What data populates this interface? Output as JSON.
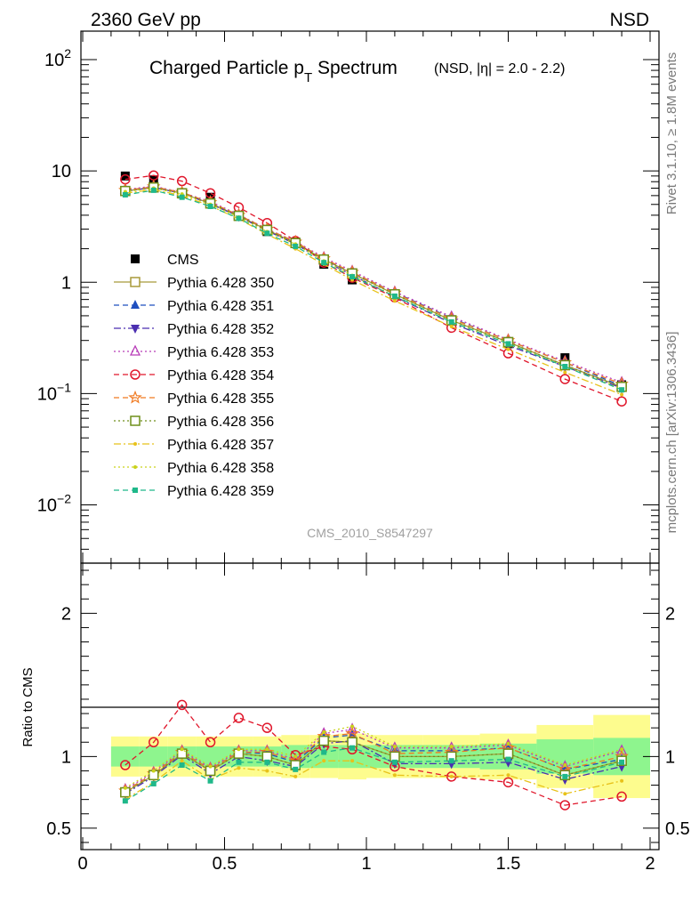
{
  "header": {
    "left": "2360 GeV pp",
    "right": "NSD"
  },
  "title": {
    "main": "Charged Particle p",
    "sub": "T",
    "main2": " Spectrum",
    "small": "(NSD, |η| = 2.0 - 2.2)"
  },
  "side_labels": {
    "rivet": "Rivet 3.1.10, ≥ 1.8M events",
    "mcplots": "mcplots.cern.ch [arXiv:1306.3436]"
  },
  "analysis_tag": "CMS_2010_S8547297",
  "ratio_ylabel": "Ratio to CMS",
  "colors": {
    "band_inner": "#8ef58e",
    "band_outer": "#fdfc8e"
  },
  "chart_data": [
    {
      "type": "scatter",
      "panel": "main",
      "yscale": "log",
      "ylim": [
        0.003,
        180
      ],
      "xlim": [
        0,
        2.05
      ],
      "y_ticks": [
        {
          "label": "10",
          "sup": "2"
        },
        {
          "label": "10",
          "sup": ""
        },
        {
          "label": "1",
          "sup": ""
        },
        {
          "label": "10",
          "sup": "−1"
        },
        {
          "label": "10",
          "sup": "−2"
        }
      ],
      "legend_position": "middle-left",
      "x": [
        0.15,
        0.25,
        0.35,
        0.45,
        0.55,
        0.65,
        0.75,
        0.85,
        0.95,
        1.1,
        1.3,
        1.5,
        1.7,
        1.9
      ],
      "series": [
        {
          "name": "CMS",
          "color": "#000000",
          "marker": "square-filled",
          "line": "none",
          "values": [
            9.0,
            8.3,
            6.2,
            5.8,
            3.9,
            2.85,
            2.3,
            1.45,
            1.05,
            0.78,
            0.455,
            0.28,
            0.21,
            0.12
          ]
        },
        {
          "name": "Pythia 6.428 350",
          "color": "#a89a3a",
          "marker": "square-open",
          "line": "solid",
          "values": [
            6.6,
            7.1,
            6.3,
            5.1,
            3.95,
            2.95,
            2.25,
            1.6,
            1.2,
            0.78,
            0.455,
            0.29,
            0.18,
            0.115
          ]
        },
        {
          "name": "Pythia 6.428 351",
          "color": "#1f4fbf",
          "marker": "triangle-up-filled",
          "line": "dashed",
          "values": [
            6.7,
            7.2,
            6.4,
            5.2,
            4.0,
            3.0,
            2.3,
            1.62,
            1.22,
            0.81,
            0.475,
            0.3,
            0.19,
            0.117
          ]
        },
        {
          "name": "Pythia 6.428 352",
          "color": "#4b2eb0",
          "marker": "triangle-down-filled",
          "line": "dashdot",
          "values": [
            6.6,
            7.1,
            6.3,
            5.05,
            3.9,
            2.9,
            2.2,
            1.56,
            1.16,
            0.74,
            0.43,
            0.27,
            0.175,
            0.112
          ]
        },
        {
          "name": "Pythia 6.428 353",
          "color": "#b83cb8",
          "marker": "triangle-up-open",
          "line": "dotted",
          "values": [
            6.8,
            7.3,
            6.4,
            5.3,
            4.05,
            3.0,
            2.33,
            1.67,
            1.26,
            0.82,
            0.49,
            0.305,
            0.195,
            0.126
          ]
        },
        {
          "name": "Pythia 6.428 354",
          "color": "#e0162b",
          "marker": "circle-open",
          "line": "dashed",
          "values": [
            8.4,
            9.1,
            8.1,
            6.3,
            4.7,
            3.4,
            2.35,
            1.5,
            1.1,
            0.73,
            0.39,
            0.23,
            0.135,
            0.085
          ]
        },
        {
          "name": "Pythia 6.428 355",
          "color": "#f07a22",
          "marker": "star-open",
          "line": "dashed",
          "values": [
            6.7,
            7.2,
            6.4,
            5.2,
            4.0,
            3.0,
            2.3,
            1.63,
            1.23,
            0.8,
            0.47,
            0.3,
            0.19,
            0.122
          ]
        },
        {
          "name": "Pythia 6.428 356",
          "color": "#6f8f1a",
          "marker": "square-open",
          "line": "dotted",
          "values": [
            6.6,
            7.1,
            6.3,
            5.1,
            3.95,
            2.95,
            2.25,
            1.6,
            1.2,
            0.78,
            0.455,
            0.29,
            0.18,
            0.115
          ]
        },
        {
          "name": "Pythia 6.428 357",
          "color": "#e8c21a",
          "marker": "dot",
          "line": "dashdot",
          "values": [
            6.3,
            6.8,
            6.0,
            4.85,
            3.7,
            2.7,
            2.0,
            1.45,
            1.05,
            0.68,
            0.4,
            0.25,
            0.155,
            0.098
          ]
        },
        {
          "name": "Pythia 6.428 358",
          "color": "#c9d21a",
          "marker": "dot",
          "line": "dotted",
          "values": [
            6.5,
            7.0,
            6.2,
            5.0,
            3.85,
            2.85,
            2.2,
            1.55,
            1.15,
            0.75,
            0.44,
            0.28,
            0.175,
            0.11
          ]
        },
        {
          "name": "Pythia 6.428 359",
          "color": "#1fb88a",
          "marker": "square-filled-small",
          "line": "dashed",
          "values": [
            6.1,
            6.7,
            5.8,
            4.8,
            3.75,
            2.75,
            2.1,
            1.5,
            1.12,
            0.75,
            0.44,
            0.28,
            0.175,
            0.108
          ]
        }
      ]
    },
    {
      "type": "line",
      "panel": "ratio",
      "ylabel": "Ratio to CMS",
      "ylim": [
        0.35,
        2.35
      ],
      "xlim": [
        0,
        2.05
      ],
      "y_ticks": [
        0.5,
        1,
        2
      ],
      "x_ticks": [
        0,
        0.5,
        1,
        1.5,
        2
      ],
      "x_tick_labels": [
        "0",
        "0.5",
        "1",
        "1.5",
        "2"
      ],
      "bands": [
        {
          "x0": 0.1,
          "x1": 0.2,
          "inner": [
            0.93,
            1.07
          ],
          "outer": [
            0.86,
            1.14
          ]
        },
        {
          "x0": 0.2,
          "x1": 0.3,
          "inner": [
            0.93,
            1.07
          ],
          "outer": [
            0.86,
            1.14
          ]
        },
        {
          "x0": 0.3,
          "x1": 0.4,
          "inner": [
            0.93,
            1.07
          ],
          "outer": [
            0.86,
            1.14
          ]
        },
        {
          "x0": 0.4,
          "x1": 0.5,
          "inner": [
            0.93,
            1.07
          ],
          "outer": [
            0.86,
            1.14
          ]
        },
        {
          "x0": 0.5,
          "x1": 0.6,
          "inner": [
            0.93,
            1.07
          ],
          "outer": [
            0.86,
            1.14
          ]
        },
        {
          "x0": 0.6,
          "x1": 0.7,
          "inner": [
            0.93,
            1.07
          ],
          "outer": [
            0.86,
            1.14
          ]
        },
        {
          "x0": 0.7,
          "x1": 0.8,
          "inner": [
            0.92,
            1.08
          ],
          "outer": [
            0.85,
            1.15
          ]
        },
        {
          "x0": 0.8,
          "x1": 0.9,
          "inner": [
            0.92,
            1.08
          ],
          "outer": [
            0.85,
            1.15
          ]
        },
        {
          "x0": 0.9,
          "x1": 1.0,
          "inner": [
            0.92,
            1.08
          ],
          "outer": [
            0.84,
            1.16
          ]
        },
        {
          "x0": 1.0,
          "x1": 1.2,
          "inner": [
            0.92,
            1.08
          ],
          "outer": [
            0.85,
            1.15
          ]
        },
        {
          "x0": 1.2,
          "x1": 1.4,
          "inner": [
            0.92,
            1.08
          ],
          "outer": [
            0.85,
            1.15
          ]
        },
        {
          "x0": 1.4,
          "x1": 1.6,
          "inner": [
            0.91,
            1.09
          ],
          "outer": [
            0.84,
            1.16
          ]
        },
        {
          "x0": 1.6,
          "x1": 1.8,
          "inner": [
            0.88,
            1.12
          ],
          "outer": [
            0.78,
            1.22
          ]
        },
        {
          "x0": 1.8,
          "x1": 2.0,
          "inner": [
            0.87,
            1.13
          ],
          "outer": [
            0.71,
            1.29
          ]
        }
      ],
      "x": [
        0.15,
        0.25,
        0.35,
        0.45,
        0.55,
        0.65,
        0.75,
        0.85,
        0.95,
        1.1,
        1.3,
        1.5,
        1.7,
        1.9
      ],
      "series": [
        {
          "name": "Pythia 6.428 350",
          "color": "#a89a3a",
          "marker": "square-open",
          "line": "solid",
          "values": [
            0.75,
            0.87,
            1.02,
            0.9,
            1.02,
            1.0,
            0.94,
            1.11,
            1.1,
            1.0,
            1.0,
            1.02,
            0.87,
            0.97
          ]
        },
        {
          "name": "Pythia 6.428 351",
          "color": "#1f4fbf",
          "marker": "triangle-up-filled",
          "line": "dashed",
          "values": [
            0.76,
            0.88,
            1.03,
            0.91,
            1.03,
            1.02,
            0.96,
            1.13,
            1.15,
            1.04,
            1.04,
            1.06,
            0.91,
            0.98
          ]
        },
        {
          "name": "Pythia 6.428 352",
          "color": "#4b2eb0",
          "marker": "triangle-down-filled",
          "line": "dashdot",
          "values": [
            0.74,
            0.86,
            1.01,
            0.88,
            1.0,
            0.97,
            0.93,
            1.09,
            1.11,
            0.95,
            0.95,
            0.96,
            0.84,
            0.93
          ]
        },
        {
          "name": "Pythia 6.428 353",
          "color": "#b83cb8",
          "marker": "triangle-up-open",
          "line": "dotted",
          "values": [
            0.77,
            0.89,
            1.04,
            0.92,
            1.04,
            1.04,
            0.98,
            1.16,
            1.19,
            1.06,
            1.06,
            1.08,
            0.93,
            1.04
          ]
        },
        {
          "name": "Pythia 6.428 354",
          "color": "#e0162b",
          "marker": "circle-open",
          "line": "dashed",
          "values": [
            0.94,
            1.1,
            1.36,
            1.1,
            1.27,
            1.2,
            1.01,
            1.07,
            1.05,
            0.93,
            0.86,
            0.82,
            0.66,
            0.72
          ]
        },
        {
          "name": "Pythia 6.428 355",
          "color": "#f07a22",
          "marker": "star-open",
          "line": "dashed",
          "values": [
            0.76,
            0.88,
            1.03,
            0.91,
            1.03,
            1.03,
            0.97,
            1.14,
            1.16,
            1.02,
            1.03,
            1.06,
            0.91,
            1.0
          ]
        },
        {
          "name": "Pythia 6.428 356",
          "color": "#6f8f1a",
          "marker": "square-open",
          "line": "dotted",
          "values": [
            0.75,
            0.87,
            1.02,
            0.9,
            1.02,
            1.0,
            0.94,
            1.11,
            1.1,
            1.0,
            1.0,
            1.02,
            0.87,
            0.97
          ]
        },
        {
          "name": "Pythia 6.428 357",
          "color": "#e8c21a",
          "marker": "dot",
          "line": "dashdot",
          "values": [
            0.7,
            0.82,
            0.97,
            0.84,
            0.92,
            0.9,
            0.86,
            0.97,
            0.97,
            0.87,
            0.86,
            0.87,
            0.74,
            0.83
          ]
        },
        {
          "name": "Pythia 6.428 358",
          "color": "#c9d21a",
          "marker": "dot",
          "line": "dotted",
          "values": [
            0.78,
            0.9,
            1.05,
            0.93,
            1.05,
            1.05,
            1.0,
            1.17,
            1.21,
            1.07,
            1.07,
            1.09,
            0.94,
            1.05
          ]
        },
        {
          "name": "Pythia 6.428 359",
          "color": "#1fb88a",
          "marker": "square-filled-small",
          "line": "dashed",
          "values": [
            0.69,
            0.81,
            0.94,
            0.83,
            0.96,
            0.96,
            0.91,
            1.03,
            1.06,
            0.96,
            0.97,
            0.98,
            0.86,
            0.96
          ]
        }
      ]
    }
  ]
}
